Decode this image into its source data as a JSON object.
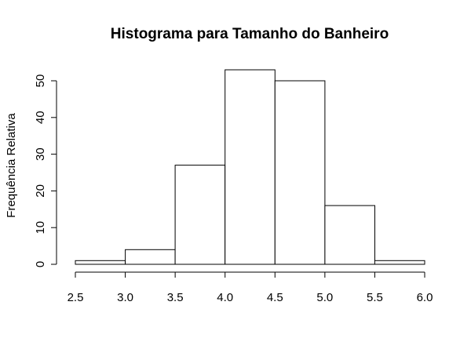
{
  "chart_data": {
    "type": "bar",
    "title": "Histograma para Tamanho do Banheiro",
    "xlabel": "",
    "ylabel": "Frequência Relativa",
    "bins": [
      {
        "from": 2.5,
        "to": 3.0,
        "value": 1
      },
      {
        "from": 3.0,
        "to": 3.5,
        "value": 4
      },
      {
        "from": 3.5,
        "to": 4.0,
        "value": 27
      },
      {
        "from": 4.0,
        "to": 4.5,
        "value": 53
      },
      {
        "from": 4.5,
        "to": 5.0,
        "value": 50
      },
      {
        "from": 5.0,
        "to": 5.5,
        "value": 16
      },
      {
        "from": 5.5,
        "to": 6.0,
        "value": 1
      }
    ],
    "xlim": [
      2.5,
      6.0
    ],
    "ylim": [
      0,
      53
    ],
    "xticks": [
      "2.5",
      "3.0",
      "3.5",
      "4.0",
      "4.5",
      "5.0",
      "5.5",
      "6.0"
    ],
    "yticks": [
      "0",
      "10",
      "20",
      "30",
      "40",
      "50"
    ],
    "grid": false,
    "bar_fill": "#ffffff",
    "bar_stroke": "#000000"
  }
}
